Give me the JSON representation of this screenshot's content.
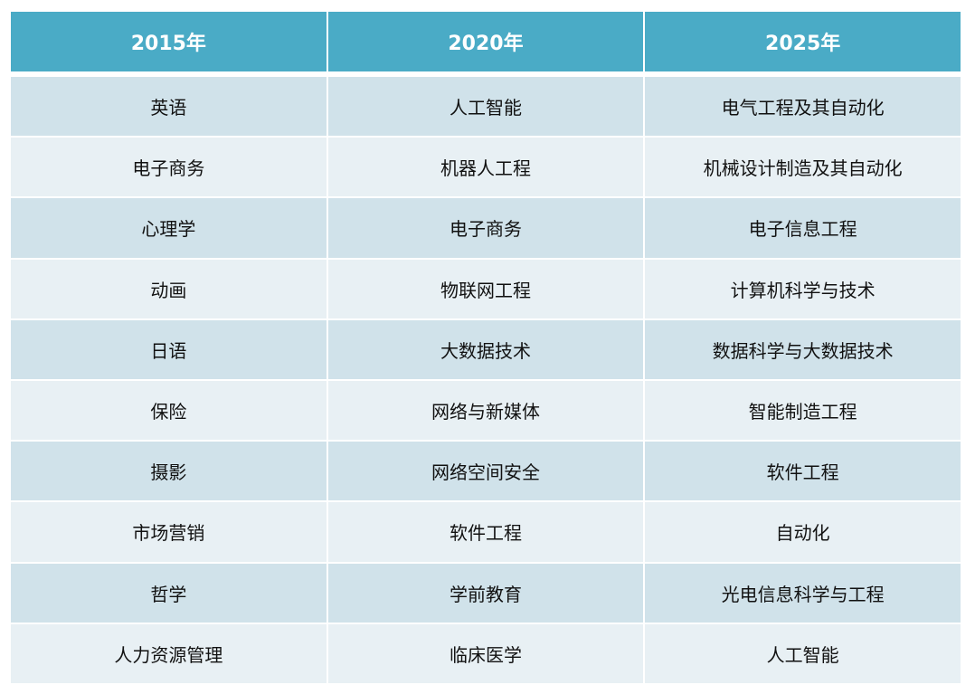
{
  "colors": {
    "header": "#4aabc6",
    "row_odd": "#d0e2ea",
    "row_even": "#e8f0f4"
  },
  "headers": [
    "2015年",
    "2020年",
    "2025年"
  ],
  "rows": [
    [
      "英语",
      "人工智能",
      "电气工程及其自动化"
    ],
    [
      "电子商务",
      "机器人工程",
      "机械设计制造及其自动化"
    ],
    [
      "心理学",
      "电子商务",
      "电子信息工程"
    ],
    [
      "动画",
      "物联网工程",
      "计算机科学与技术"
    ],
    [
      "日语",
      "大数据技术",
      "数据科学与大数据技术"
    ],
    [
      "保险",
      "网络与新媒体",
      "智能制造工程"
    ],
    [
      "摄影",
      "网络空间安全",
      "软件工程"
    ],
    [
      "市场营销",
      "软件工程",
      "自动化"
    ],
    [
      "哲学",
      "学前教育",
      "光电信息科学与工程"
    ],
    [
      "人力资源管理",
      "临床医学",
      "人工智能"
    ]
  ]
}
